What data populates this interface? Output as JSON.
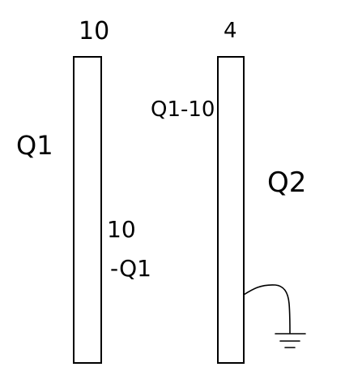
{
  "diagram": {
    "left_plate": {
      "top_label": "10",
      "outer_charge": "Q1",
      "inner_charge_top": "10",
      "inner_charge_bottom": "-Q1"
    },
    "right_plate": {
      "top_label": "4",
      "inner_charge": "Q1-10",
      "outer_charge": "Q2",
      "grounded": true
    }
  },
  "colors": {
    "ink": "#000000",
    "background": "#ffffff"
  }
}
